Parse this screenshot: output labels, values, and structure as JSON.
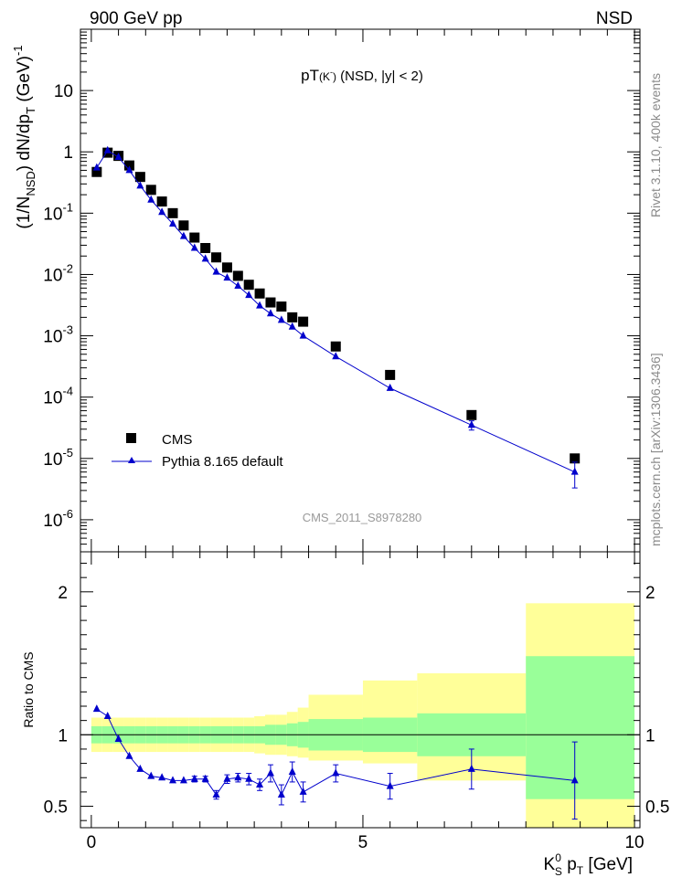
{
  "header": {
    "left": "900 GeV pp",
    "right": "NSD"
  },
  "side_text": {
    "rivet": "Rivet 3.1.10,  400k events",
    "mcplots": "mcplots.cern.ch [arXiv:1306.3436]"
  },
  "chart_data": [
    {
      "type": "scatter",
      "title": "pT",
      "title_sup": "(K",
      "title_sup_minus": "-",
      "title_close": ")",
      "title_rest": " (NSD, |y| < 2)",
      "watermark": "CMS_2011_S8978280",
      "y_scale": "log",
      "ylim": [
        3e-07,
        100
      ],
      "xlim": [
        -0.2,
        10.1
      ],
      "ylabel": {
        "p1": "(1/N",
        "sub": "NSD",
        "p2": ") dN/dp",
        "sub2": "T",
        "p3": " (GeV)",
        "sup": "-1"
      },
      "y_ticks": [
        {
          "value": 1e-06,
          "base": "10",
          "exp": "-6"
        },
        {
          "value": 1e-05,
          "base": "10",
          "exp": "-5"
        },
        {
          "value": 0.0001,
          "base": "10",
          "exp": "-4"
        },
        {
          "value": 0.001,
          "base": "10",
          "exp": "-3"
        },
        {
          "value": 0.01,
          "base": "10",
          "exp": "-2"
        },
        {
          "value": 0.1,
          "base": "10",
          "exp": "-1"
        },
        {
          "value": 1,
          "base": "1",
          "exp": ""
        },
        {
          "value": 10,
          "base": "10",
          "exp": ""
        }
      ],
      "legend": [
        {
          "label": "CMS",
          "marker": "square",
          "color": "#000000"
        },
        {
          "label": "Pythia 8.165 default",
          "marker": "triangle-line",
          "color": "#0000cc"
        }
      ],
      "series": [
        {
          "name": "CMS",
          "color": "#000000",
          "x": [
            0.1,
            0.3,
            0.5,
            0.7,
            0.9,
            1.1,
            1.3,
            1.5,
            1.7,
            1.9,
            2.1,
            2.3,
            2.5,
            2.7,
            2.9,
            3.1,
            3.3,
            3.5,
            3.7,
            3.9,
            4.5,
            5.5,
            7.0,
            8.9
          ],
          "y": [
            0.47,
            0.97,
            0.86,
            0.6,
            0.39,
            0.24,
            0.155,
            0.1,
            0.063,
            0.04,
            0.027,
            0.019,
            0.013,
            0.0095,
            0.0068,
            0.0049,
            0.0035,
            0.003,
            0.002,
            0.0017,
            0.00067,
            0.00023,
            5.1e-05,
            1e-05
          ]
        },
        {
          "name": "Pythia 8.165 default",
          "color": "#0000cc",
          "x": [
            0.1,
            0.3,
            0.5,
            0.7,
            0.9,
            1.1,
            1.3,
            1.5,
            1.7,
            1.9,
            2.1,
            2.3,
            2.5,
            2.7,
            2.9,
            3.1,
            3.3,
            3.5,
            3.7,
            3.9,
            4.5,
            5.5,
            7.0,
            8.9
          ],
          "y": [
            0.55,
            1.05,
            0.82,
            0.5,
            0.28,
            0.165,
            0.104,
            0.067,
            0.042,
            0.027,
            0.018,
            0.011,
            0.0088,
            0.0065,
            0.0046,
            0.0031,
            0.0023,
            0.0018,
            0.0014,
            0.001,
            0.00046,
            0.00014,
            3.5e-05,
            6e-06
          ],
          "yerr_low": [
            0,
            0,
            0,
            0,
            0,
            0,
            0,
            0,
            0,
            0,
            0,
            0,
            0,
            0,
            0,
            0,
            0,
            0,
            0,
            0,
            0,
            0,
            6e-06,
            2.7e-06
          ],
          "yerr_high": [
            0,
            0,
            0,
            0,
            0,
            0,
            0,
            0,
            0,
            0,
            0,
            0,
            0,
            0,
            0,
            0,
            0,
            0,
            0,
            0,
            0,
            0,
            6e-06,
            2.7e-06
          ]
        }
      ]
    },
    {
      "type": "line",
      "ylabel": "Ratio to CMS",
      "ylim": [
        0.35,
        2.28
      ],
      "xlim": [
        -0.2,
        10.1
      ],
      "xlabel": {
        "k": "K",
        "ksup": "0",
        "ksub": "S",
        "p": " p",
        "psub": "T",
        "unit": " [GeV]"
      },
      "x_ticks": [
        0,
        5,
        10
      ],
      "y_ticks": [
        0.5,
        1,
        2
      ],
      "bands": {
        "edges": [
          0.0,
          0.2,
          0.4,
          0.6,
          0.8,
          1.0,
          1.2,
          1.4,
          1.6,
          1.8,
          2.0,
          2.2,
          2.4,
          2.6,
          2.8,
          3.0,
          3.2,
          3.4,
          3.6,
          3.8,
          4.0,
          5.0,
          6.0,
          8.0,
          10.0
        ],
        "stat_low": [
          0.94,
          0.94,
          0.94,
          0.94,
          0.94,
          0.94,
          0.94,
          0.94,
          0.94,
          0.94,
          0.94,
          0.94,
          0.94,
          0.94,
          0.94,
          0.94,
          0.93,
          0.93,
          0.92,
          0.91,
          0.89,
          0.88,
          0.85,
          0.55
        ],
        "stat_high": [
          1.06,
          1.06,
          1.06,
          1.06,
          1.06,
          1.06,
          1.06,
          1.06,
          1.06,
          1.06,
          1.06,
          1.06,
          1.06,
          1.06,
          1.06,
          1.06,
          1.07,
          1.07,
          1.08,
          1.09,
          1.11,
          1.12,
          1.15,
          1.55
        ],
        "syst_low": [
          0.88,
          0.88,
          0.88,
          0.88,
          0.88,
          0.88,
          0.88,
          0.88,
          0.88,
          0.88,
          0.88,
          0.88,
          0.88,
          0.88,
          0.88,
          0.87,
          0.86,
          0.86,
          0.85,
          0.84,
          0.82,
          0.8,
          0.68,
          0.35
        ],
        "syst_high": [
          1.12,
          1.12,
          1.12,
          1.12,
          1.12,
          1.12,
          1.12,
          1.12,
          1.12,
          1.12,
          1.12,
          1.12,
          1.12,
          1.12,
          1.12,
          1.13,
          1.14,
          1.14,
          1.16,
          1.19,
          1.28,
          1.38,
          1.43,
          1.92
        ],
        "stat_color": "#99ff99",
        "syst_color": "#ffff99"
      },
      "series": [
        {
          "name": "Pythia 8.165 default",
          "color": "#0000cc",
          "x": [
            0.1,
            0.3,
            0.5,
            0.7,
            0.9,
            1.1,
            1.3,
            1.5,
            1.7,
            1.9,
            2.1,
            2.3,
            2.5,
            2.7,
            2.9,
            3.1,
            3.3,
            3.5,
            3.7,
            3.9,
            4.5,
            5.5,
            7.0,
            8.9
          ],
          "y": [
            1.18,
            1.13,
            0.97,
            0.85,
            0.76,
            0.71,
            0.7,
            0.68,
            0.68,
            0.69,
            0.69,
            0.58,
            0.69,
            0.7,
            0.69,
            0.65,
            0.73,
            0.58,
            0.74,
            0.6,
            0.73,
            0.64,
            0.76,
            0.68
          ],
          "yerr": [
            0,
            0,
            0,
            0,
            0,
            0,
            0,
            0,
            0,
            0.02,
            0.02,
            0.03,
            0.03,
            0.03,
            0.04,
            0.04,
            0.06,
            0.07,
            0.07,
            0.07,
            0.06,
            0.09,
            0.14,
            0.27
          ]
        }
      ]
    }
  ]
}
